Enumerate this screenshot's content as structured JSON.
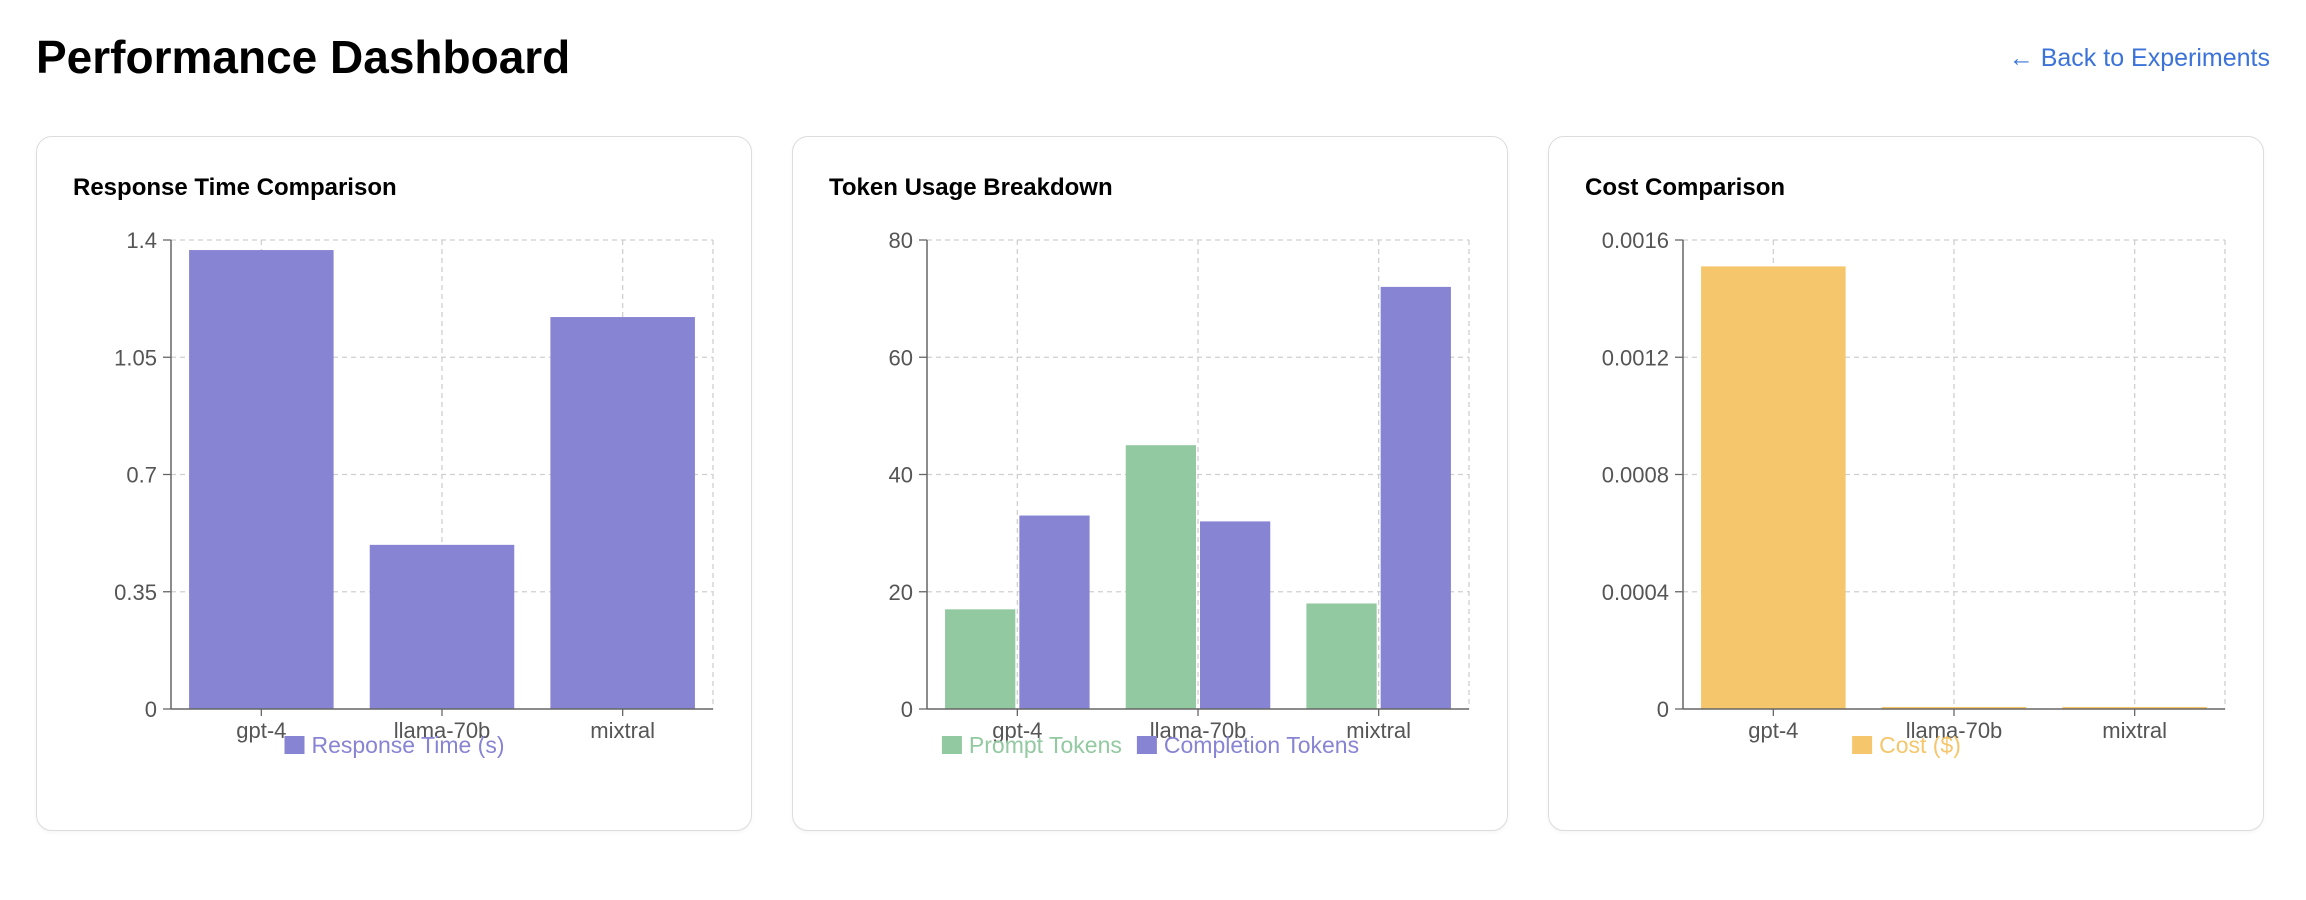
{
  "header": {
    "title": "Performance Dashboard",
    "back_link": "← Back to Experiments"
  },
  "colors": {
    "purple": "#8884d4",
    "green": "#92c9a0",
    "yellow": "#f5c66b",
    "link": "#3b73d9"
  },
  "chart_data": [
    {
      "type": "bar",
      "title": "Response Time Comparison",
      "categories": [
        "gpt-4",
        "llama-70b",
        "mixtral"
      ],
      "series": [
        {
          "name": "Response Time (s)",
          "color": "#8884d4",
          "values": [
            1.37,
            0.49,
            1.17
          ]
        }
      ],
      "ylim": [
        0,
        1.4
      ],
      "yticks": [
        "0",
        "0.35",
        "0.7",
        "1.05",
        "1.4"
      ],
      "grid": true,
      "legend": "bottom"
    },
    {
      "type": "bar",
      "title": "Token Usage Breakdown",
      "categories": [
        "gpt-4",
        "llama-70b",
        "mixtral"
      ],
      "series": [
        {
          "name": "Prompt Tokens",
          "color": "#92c9a0",
          "values": [
            17,
            45,
            18
          ]
        },
        {
          "name": "Completion Tokens",
          "color": "#8884d4",
          "values": [
            33,
            32,
            72
          ]
        }
      ],
      "ylim": [
        0,
        80
      ],
      "yticks": [
        "0",
        "20",
        "40",
        "60",
        "80"
      ],
      "grid": true,
      "legend": "bottom"
    },
    {
      "type": "bar",
      "title": "Cost Comparison",
      "categories": [
        "gpt-4",
        "llama-70b",
        "mixtral"
      ],
      "series": [
        {
          "name": "Cost ($)",
          "color": "#f5c66b",
          "values": [
            0.00151,
            7e-06,
            7e-06
          ]
        }
      ],
      "ylim": [
        0,
        0.0016
      ],
      "yticks": [
        "0",
        "0.0004",
        "0.0008",
        "0.0012",
        "0.0016"
      ],
      "grid": true,
      "legend": "bottom"
    }
  ]
}
